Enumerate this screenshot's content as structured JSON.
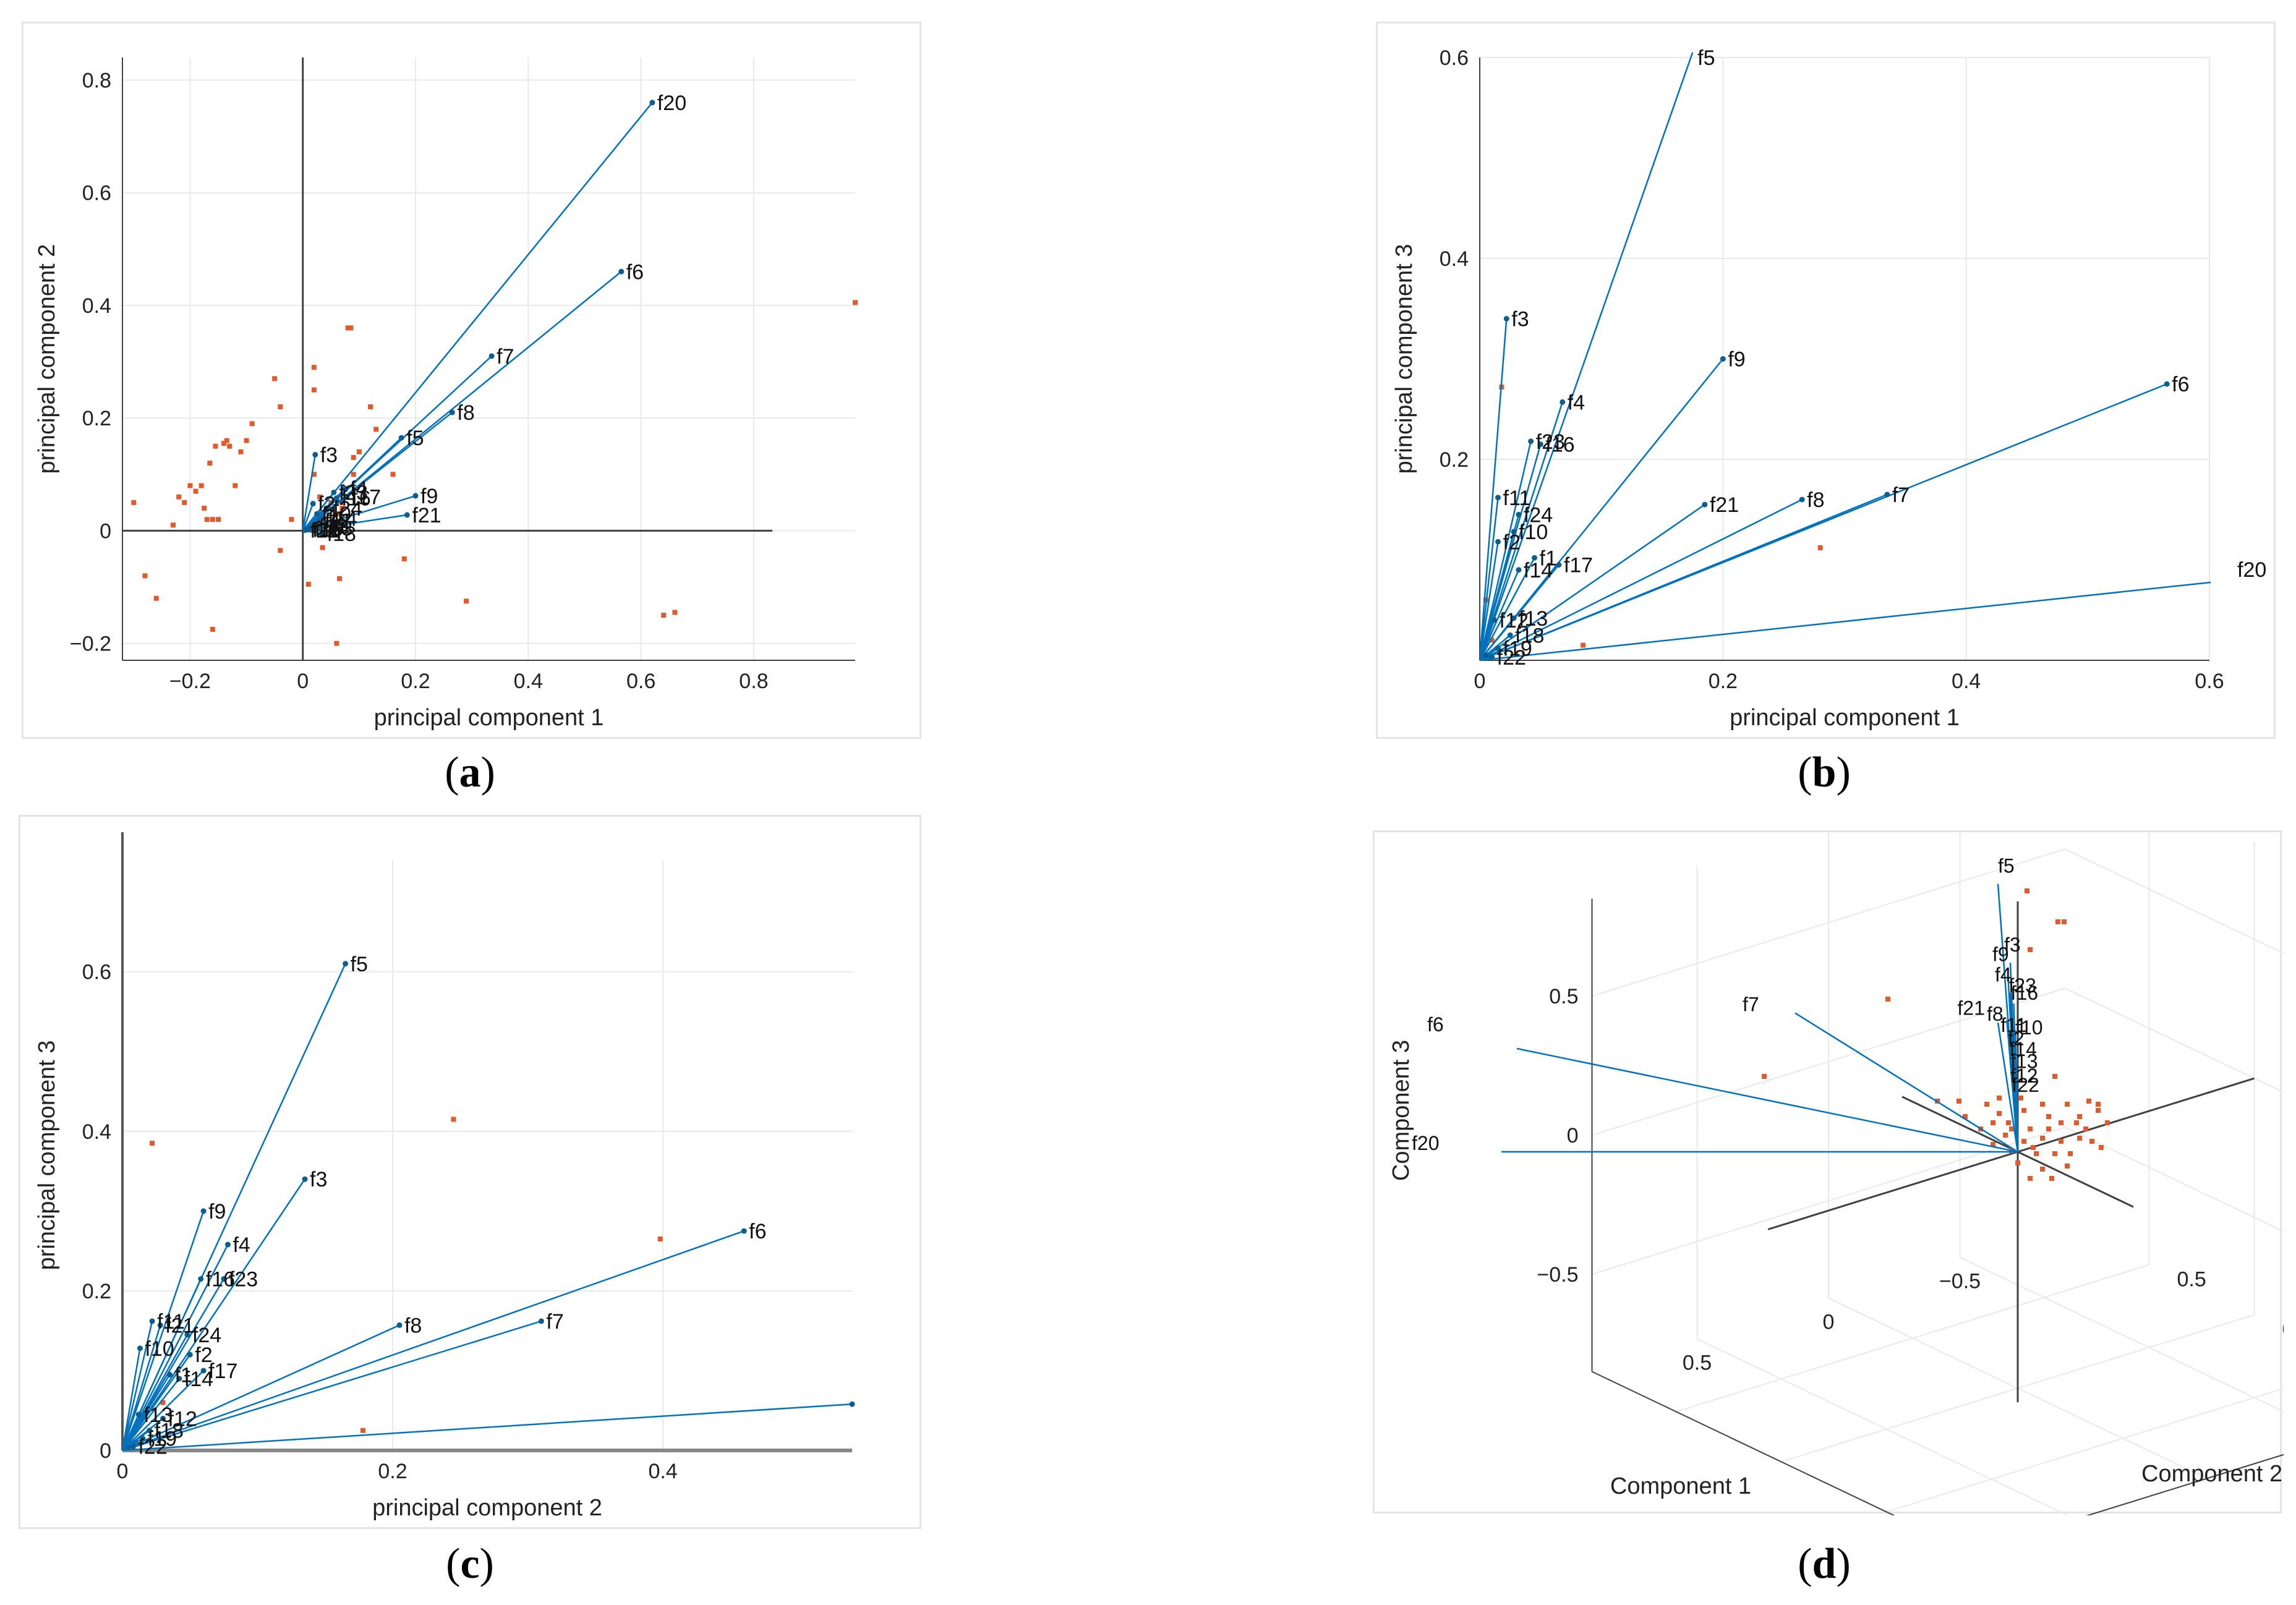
{
  "colors": {
    "biplot": "#0072bd",
    "biplot_point": "#0b5e8f",
    "scores": "#e05a2b",
    "grid": "#e9e9e9",
    "axis": "#404040"
  },
  "captions": {
    "a": "a",
    "b": "b",
    "c": "c",
    "d": "d"
  },
  "chart_data": [
    {
      "id": "a",
      "type": "scatter",
      "subtype": "biplot",
      "xlabel": "principal component 1",
      "ylabel": "principal component 2",
      "xlim": [
        -0.32,
        0.98
      ],
      "ylim": [
        -0.23,
        0.84
      ],
      "xticks": [
        -0.2,
        0,
        0.2,
        0.4,
        0.6,
        0.8
      ],
      "yticks": [
        -0.2,
        0,
        0.2,
        0.4,
        0.6,
        0.8
      ],
      "xtick_labels": [
        "−0.2",
        "0",
        "0.2",
        "0.4",
        "0.6",
        "0.8"
      ],
      "ytick_labels": [
        "−0.2",
        "0",
        "0.2",
        "0.4",
        "0.6",
        "0.8"
      ],
      "grid": true,
      "vectors": [
        {
          "name": "f20",
          "x": 0.62,
          "y": 0.76
        },
        {
          "name": "f6",
          "x": 0.565,
          "y": 0.46
        },
        {
          "name": "f7",
          "x": 0.335,
          "y": 0.31
        },
        {
          "name": "f8",
          "x": 0.265,
          "y": 0.21
        },
        {
          "name": "f5",
          "x": 0.175,
          "y": 0.165
        },
        {
          "name": "f3",
          "x": 0.022,
          "y": 0.135
        },
        {
          "name": "f9",
          "x": 0.2,
          "y": 0.062
        },
        {
          "name": "f21",
          "x": 0.185,
          "y": 0.028
        },
        {
          "name": "f4",
          "x": 0.075,
          "y": 0.075
        },
        {
          "name": "f17",
          "x": 0.078,
          "y": 0.06
        },
        {
          "name": "f23",
          "x": 0.055,
          "y": 0.068
        },
        {
          "name": "f16",
          "x": 0.06,
          "y": 0.058
        },
        {
          "name": "f24",
          "x": 0.045,
          "y": 0.04
        },
        {
          "name": "f2",
          "x": 0.018,
          "y": 0.048
        },
        {
          "name": "f10",
          "x": 0.025,
          "y": 0.03
        },
        {
          "name": "f11",
          "x": 0.03,
          "y": 0.018
        },
        {
          "name": "f14",
          "x": 0.036,
          "y": 0.022
        },
        {
          "name": "f1",
          "x": 0.04,
          "y": 0.012
        },
        {
          "name": "f13",
          "x": 0.028,
          "y": 0.005
        },
        {
          "name": "f12",
          "x": 0.02,
          "y": 0.008
        },
        {
          "name": "f18",
          "x": 0.034,
          "y": -0.005
        },
        {
          "name": "f19",
          "x": 0.012,
          "y": 0.004
        },
        {
          "name": "f15",
          "x": 0.008,
          "y": 0.002
        },
        {
          "name": "f22",
          "x": 0.004,
          "y": 0.001
        }
      ],
      "labelled": [
        "f20",
        "f6",
        "f7",
        "f8",
        "f5",
        "f3",
        "f9",
        "f21",
        "f4",
        "f17",
        "f23",
        "f16",
        "f24",
        "f2",
        "f10",
        "f11",
        "f14",
        "f1",
        "f13",
        "f12",
        "f18",
        "f19",
        "f15",
        "f22"
      ],
      "scores": [
        [
          -0.3,
          0.05
        ],
        [
          -0.28,
          -0.08
        ],
        [
          -0.26,
          -0.12
        ],
        [
          -0.23,
          0.01
        ],
        [
          -0.22,
          0.06
        ],
        [
          -0.21,
          0.05
        ],
        [
          -0.2,
          0.08
        ],
        [
          -0.19,
          0.07
        ],
        [
          -0.18,
          0.08
        ],
        [
          -0.175,
          0.04
        ],
        [
          -0.17,
          0.02
        ],
        [
          -0.165,
          0.12
        ],
        [
          -0.16,
          0.02
        ],
        [
          -0.16,
          -0.175
        ],
        [
          -0.155,
          0.15
        ],
        [
          -0.15,
          0.02
        ],
        [
          -0.14,
          0.155
        ],
        [
          -0.135,
          0.16
        ],
        [
          -0.13,
          0.15
        ],
        [
          -0.12,
          0.08
        ],
        [
          -0.11,
          0.14
        ],
        [
          -0.1,
          0.16
        ],
        [
          -0.09,
          0.19
        ],
        [
          -0.05,
          0.27
        ],
        [
          -0.04,
          0.22
        ],
        [
          -0.04,
          -0.035
        ],
        [
          -0.02,
          0.02
        ],
        [
          0.02,
          0.29
        ],
        [
          0.02,
          0.25
        ],
        [
          0.02,
          0.1
        ],
        [
          0.01,
          -0.095
        ],
        [
          0.03,
          0.06
        ],
        [
          0.035,
          -0.03
        ],
        [
          0.05,
          0.0
        ],
        [
          0.06,
          -0.2
        ],
        [
          0.065,
          -0.085
        ],
        [
          0.07,
          0.05
        ],
        [
          0.08,
          0.36
        ],
        [
          0.085,
          0.36
        ],
        [
          0.09,
          0.13
        ],
        [
          0.1,
          0.14
        ],
        [
          0.12,
          0.22
        ],
        [
          0.13,
          0.18
        ],
        [
          0.16,
          0.1
        ],
        [
          0.18,
          -0.05
        ],
        [
          0.29,
          -0.125
        ],
        [
          0.64,
          -0.15
        ],
        [
          0.66,
          -0.145
        ],
        [
          0.98,
          0.405
        ],
        [
          0.07,
          0.04
        ],
        [
          0.05,
          0.05
        ],
        [
          0.04,
          0.02
        ],
        [
          0.06,
          0.03
        ],
        [
          0.03,
          0.03
        ],
        [
          0.09,
          0.1
        ]
      ]
    },
    {
      "id": "b",
      "type": "scatter",
      "subtype": "biplot",
      "xlabel": "principal component 1",
      "ylabel": "principal component 3",
      "xlim": [
        0,
        0.6
      ],
      "ylim": [
        0,
        0.6
      ],
      "xticks": [
        0,
        0.2,
        0.4,
        0.6
      ],
      "yticks": [
        0.2,
        0.4,
        0.6
      ],
      "xtick_labels": [
        "0",
        "0.2",
        "0.4",
        "0.6"
      ],
      "ytick_labels": [
        "0.2",
        "0.4",
        "0.6"
      ],
      "grid": true,
      "vectors": [
        {
          "name": "f5",
          "x": 0.175,
          "y": 0.605
        },
        {
          "name": "f3",
          "x": 0.022,
          "y": 0.34
        },
        {
          "name": "f9",
          "x": 0.2,
          "y": 0.3
        },
        {
          "name": "f4",
          "x": 0.068,
          "y": 0.257
        },
        {
          "name": "f6",
          "x": 0.565,
          "y": 0.275
        },
        {
          "name": "f23",
          "x": 0.042,
          "y": 0.218
        },
        {
          "name": "f16",
          "x": 0.05,
          "y": 0.215
        },
        {
          "name": "f21",
          "x": 0.185,
          "y": 0.155
        },
        {
          "name": "f8",
          "x": 0.265,
          "y": 0.16
        },
        {
          "name": "f7",
          "x": 0.335,
          "y": 0.165
        },
        {
          "name": "f11",
          "x": 0.015,
          "y": 0.162
        },
        {
          "name": "f24",
          "x": 0.032,
          "y": 0.145
        },
        {
          "name": "f10",
          "x": 0.028,
          "y": 0.128
        },
        {
          "name": "f2",
          "x": 0.015,
          "y": 0.118
        },
        {
          "name": "f1",
          "x": 0.045,
          "y": 0.102
        },
        {
          "name": "f17",
          "x": 0.065,
          "y": 0.095
        },
        {
          "name": "f14",
          "x": 0.032,
          "y": 0.09
        },
        {
          "name": "f13",
          "x": 0.028,
          "y": 0.042
        },
        {
          "name": "f12",
          "x": 0.012,
          "y": 0.04
        },
        {
          "name": "f18",
          "x": 0.025,
          "y": 0.025
        },
        {
          "name": "f19",
          "x": 0.015,
          "y": 0.012
        },
        {
          "name": "f22",
          "x": 0.01,
          "y": 0.003
        },
        {
          "name": "f15",
          "x": 0.005,
          "y": 0.005
        },
        {
          "name": "f20",
          "x": 0.62,
          "y": 0.08
        }
      ],
      "labelled": [
        "f5",
        "f3",
        "f9",
        "f4",
        "f6",
        "f23",
        "f16",
        "f21",
        "f8",
        "f7",
        "f11",
        "f24",
        "f10",
        "f2",
        "f1",
        "f17",
        "f14",
        "f13",
        "f12",
        "f18",
        "f19",
        "f22",
        "f20"
      ],
      "scores": [
        [
          0.018,
          0.272
        ],
        [
          0.28,
          0.112
        ],
        [
          0.085,
          0.015
        ],
        [
          0.005,
          0.06
        ],
        [
          0.01,
          0.02
        ]
      ]
    },
    {
      "id": "c",
      "type": "scatter",
      "subtype": "biplot",
      "xlabel": "principal component 2",
      "ylabel": "principal component 3",
      "xlim": [
        0,
        0.54
      ],
      "ylim": [
        0,
        0.74
      ],
      "xticks": [
        0,
        0.2,
        0.4
      ],
      "yticks": [
        0,
        0.2,
        0.4,
        0.6
      ],
      "xtick_labels": [
        "0",
        "0.2",
        "0.4"
      ],
      "ytick_labels": [
        "0",
        "0.2",
        "0.4",
        "0.6"
      ],
      "grid": true,
      "vectors": [
        {
          "name": "f5",
          "x": 0.165,
          "y": 0.61
        },
        {
          "name": "f3",
          "x": 0.135,
          "y": 0.34
        },
        {
          "name": "f9",
          "x": 0.06,
          "y": 0.3
        },
        {
          "name": "f6",
          "x": 0.46,
          "y": 0.275
        },
        {
          "name": "f4",
          "x": 0.078,
          "y": 0.258
        },
        {
          "name": "f16",
          "x": 0.058,
          "y": 0.215
        },
        {
          "name": "f23",
          "x": 0.075,
          "y": 0.215
        },
        {
          "name": "f8",
          "x": 0.205,
          "y": 0.157
        },
        {
          "name": "f7",
          "x": 0.31,
          "y": 0.162
        },
        {
          "name": "f11",
          "x": 0.022,
          "y": 0.162
        },
        {
          "name": "f21",
          "x": 0.028,
          "y": 0.157
        },
        {
          "name": "f24",
          "x": 0.048,
          "y": 0.145
        },
        {
          "name": "f10",
          "x": 0.013,
          "y": 0.128
        },
        {
          "name": "f2",
          "x": 0.05,
          "y": 0.12
        },
        {
          "name": "f17",
          "x": 0.06,
          "y": 0.1
        },
        {
          "name": "f1",
          "x": 0.035,
          "y": 0.095
        },
        {
          "name": "f14",
          "x": 0.042,
          "y": 0.09
        },
        {
          "name": "f13",
          "x": 0.012,
          "y": 0.045
        },
        {
          "name": "f12",
          "x": 0.03,
          "y": 0.04
        },
        {
          "name": "f18",
          "x": 0.02,
          "y": 0.025
        },
        {
          "name": "f19",
          "x": 0.015,
          "y": 0.015
        },
        {
          "name": "f22",
          "x": 0.008,
          "y": 0.005
        },
        {
          "name": "f15",
          "x": 0.004,
          "y": 0.003
        },
        {
          "name": "f20",
          "x": 0.54,
          "y": 0.058
        }
      ],
      "labelled": [
        "f5",
        "f3",
        "f9",
        "f6",
        "f4",
        "f16",
        "f23",
        "f8",
        "f7",
        "f11",
        "f21",
        "f24",
        "f10",
        "f2",
        "f17",
        "f1",
        "f14",
        "f13",
        "f12",
        "f18",
        "f19",
        "f22"
      ],
      "label_overrides": {
        "f11": "f11",
        "f21": "f21",
        "f24": "f24",
        "f1": "f1"
      },
      "scores": [
        [
          0.022,
          0.385
        ],
        [
          0.245,
          0.415
        ],
        [
          0.398,
          0.265
        ],
        [
          0.178,
          0.025
        ],
        [
          0.03,
          0.06
        ],
        [
          0.01,
          0.01
        ],
        [
          0.215,
          -0.002
        ]
      ]
    },
    {
      "id": "d",
      "type": "scatter",
      "subtype": "biplot-3d",
      "xlabel": "Component 1",
      "ylabel": "Component 2",
      "zlabel": "Component 3",
      "ztick_labels": [
        "0.5",
        "0",
        "−0.5"
      ],
      "xtick_labels": [
        "0.5",
        "0",
        "−0.5"
      ],
      "ytick_labels": [
        "0.5",
        "0",
        "−0.5"
      ],
      "grid": true,
      "vectors": [
        {
          "name": "f5"
        },
        {
          "name": "f9"
        },
        {
          "name": "f3"
        },
        {
          "name": "f6"
        },
        {
          "name": "f4"
        },
        {
          "name": "f23"
        },
        {
          "name": "f16"
        },
        {
          "name": "f21"
        },
        {
          "name": "f11"
        },
        {
          "name": "f10"
        },
        {
          "name": "f7"
        },
        {
          "name": "f8"
        },
        {
          "name": "f20"
        },
        {
          "name": "f2"
        },
        {
          "name": "f14"
        },
        {
          "name": "f13"
        },
        {
          "name": "f12"
        },
        {
          "name": "f22"
        }
      ]
    }
  ]
}
